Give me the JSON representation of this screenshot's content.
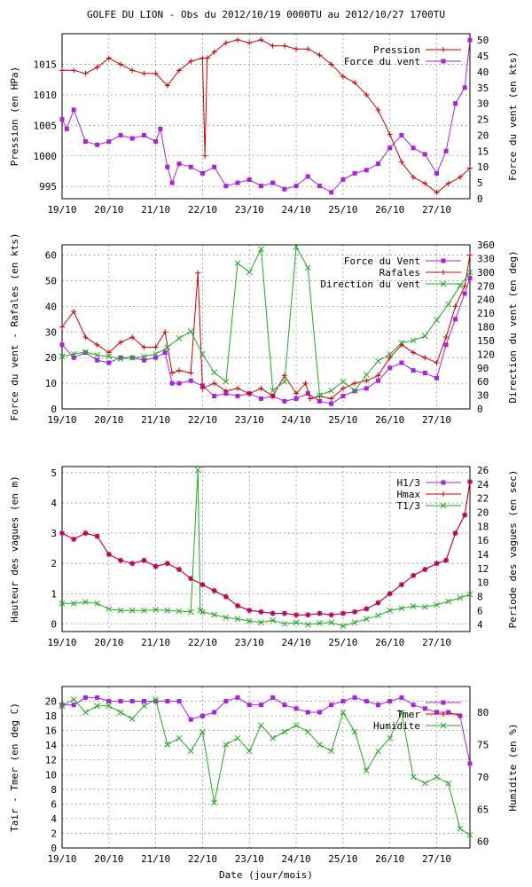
{
  "title": "GOLFE DU LION - Obs du 2012/10/19 0000TU au 2012/10/27 1700TU",
  "xlabel": "Date (jour/mois)",
  "colors": {
    "red": "#cc0000",
    "purple": "#aa22dd",
    "green": "#22aa22",
    "grid": "#999999"
  },
  "chart_data": [
    {
      "type": "line",
      "ylabel_left": "Pression (en HPa)",
      "ylabel_right": "Force du vent (en kts)",
      "x_ticks": [
        "19/10",
        "20/10",
        "21/10",
        "22/10",
        "23/10",
        "24/10",
        "25/10",
        "26/10",
        "27/10"
      ],
      "y_left_ticks": [
        995,
        1000,
        1005,
        1010,
        1015
      ],
      "y_left_range": [
        993,
        1020
      ],
      "y_right_ticks": [
        0,
        5,
        10,
        15,
        20,
        25,
        30,
        35,
        40,
        45,
        50
      ],
      "y_right_range": [
        0,
        52
      ],
      "series": [
        {
          "name": "Pression",
          "axis": "left",
          "color": "red",
          "marker": "plus",
          "x": [
            0,
            0.25,
            0.5,
            0.75,
            1,
            1.25,
            1.5,
            1.75,
            2,
            2.25,
            2.5,
            2.75,
            3,
            3.05,
            3.1,
            3.25,
            3.5,
            3.75,
            4,
            4.25,
            4.5,
            4.75,
            5,
            5.25,
            5.5,
            5.75,
            6,
            6.25,
            6.5,
            6.75,
            7,
            7.25,
            7.5,
            7.75,
            8,
            8.25,
            8.5,
            8.71
          ],
          "y": [
            1014,
            1014,
            1013.5,
            1014.5,
            1016,
            1015,
            1014,
            1013.5,
            1013.5,
            1011.5,
            1014,
            1015.5,
            1016,
            1000,
            1016,
            1017,
            1018.5,
            1019,
            1018.5,
            1019,
            1018,
            1018,
            1017.5,
            1017.5,
            1016.5,
            1015,
            1013,
            1012,
            1010,
            1007.5,
            1003.5,
            999,
            996.5,
            995.5,
            994,
            995.5,
            996.5,
            998
          ]
        },
        {
          "name": "Force du vent",
          "axis": "right",
          "color": "purple",
          "marker": "square",
          "x": [
            0,
            0.1,
            0.25,
            0.5,
            0.75,
            1,
            1.25,
            1.5,
            1.75,
            2,
            2.1,
            2.25,
            2.35,
            2.5,
            2.75,
            3,
            3.25,
            3.5,
            3.75,
            4,
            4.25,
            4.5,
            4.75,
            5,
            5.25,
            5.5,
            5.75,
            6,
            6.25,
            6.5,
            6.75,
            7,
            7.25,
            7.5,
            7.75,
            8,
            8.2,
            8.4,
            8.6,
            8.71
          ],
          "y": [
            25,
            22,
            28,
            18,
            17,
            18,
            20,
            19,
            20,
            18,
            22,
            10,
            5,
            11,
            10,
            8,
            10,
            4,
            5,
            6,
            4,
            5,
            3,
            4,
            7,
            4,
            2,
            6,
            8,
            9,
            11,
            16,
            20,
            16,
            14,
            8,
            15,
            30,
            35,
            50
          ]
        }
      ]
    },
    {
      "type": "line",
      "ylabel_left": "Force du vent - Rafales (en kts)",
      "ylabel_right": "Direction du vent (en deg)",
      "x_ticks": [
        "19/10",
        "20/10",
        "21/10",
        "22/10",
        "23/10",
        "24/10",
        "25/10",
        "26/10",
        "27/10"
      ],
      "y_left_ticks": [
        0,
        10,
        20,
        30,
        40,
        50,
        60
      ],
      "y_left_range": [
        0,
        64
      ],
      "y_right_ticks": [
        0,
        30,
        60,
        90,
        120,
        150,
        180,
        210,
        240,
        270,
        300,
        330,
        360
      ],
      "y_right_range": [
        0,
        360
      ],
      "series": [
        {
          "name": "Force du Vent",
          "axis": "left",
          "color": "purple",
          "marker": "square",
          "x": [
            0,
            0.25,
            0.5,
            0.75,
            1,
            1.25,
            1.5,
            1.75,
            2,
            2.2,
            2.35,
            2.5,
            2.75,
            3,
            3.25,
            3.5,
            3.75,
            4,
            4.25,
            4.5,
            4.75,
            5,
            5.25,
            5.5,
            5.75,
            6,
            6.25,
            6.5,
            6.75,
            7,
            7.25,
            7.5,
            7.75,
            8,
            8.2,
            8.4,
            8.6,
            8.71
          ],
          "y": [
            25,
            20,
            22,
            19,
            18,
            20,
            20,
            19,
            20,
            22,
            10,
            10,
            11,
            9,
            5,
            6,
            5,
            6,
            4,
            5,
            3,
            4,
            6,
            3,
            2,
            5,
            7,
            8,
            11,
            16,
            18,
            15,
            14,
            12,
            25,
            35,
            45,
            51
          ]
        },
        {
          "name": "Rafales",
          "axis": "left",
          "color": "red",
          "marker": "plus",
          "x": [
            0,
            0.25,
            0.5,
            0.75,
            1,
            1.25,
            1.5,
            1.75,
            2,
            2.2,
            2.35,
            2.5,
            2.75,
            2.9,
            3,
            3.25,
            3.5,
            3.75,
            4,
            4.25,
            4.5,
            4.75,
            5,
            5.2,
            5.3,
            5.5,
            5.75,
            6,
            6.25,
            6.5,
            6.75,
            7,
            7.25,
            7.5,
            7.75,
            8,
            8.2,
            8.4,
            8.6,
            8.71
          ],
          "y": [
            32,
            38,
            28,
            25,
            22,
            26,
            28,
            24,
            24,
            30,
            14,
            15,
            14,
            53,
            8,
            10,
            7,
            8,
            6,
            8,
            5,
            13,
            6,
            10,
            4,
            5,
            4,
            8,
            10,
            11,
            13,
            20,
            25,
            22,
            20,
            18,
            28,
            40,
            48,
            60
          ]
        },
        {
          "name": "Direction du vent",
          "axis": "right",
          "color": "green",
          "marker": "cross",
          "x": [
            0,
            0.25,
            0.5,
            0.75,
            1,
            1.25,
            1.5,
            1.75,
            2,
            2.25,
            2.5,
            2.75,
            3,
            3.25,
            3.5,
            3.75,
            4,
            4.25,
            4.5,
            4.75,
            5,
            5.25,
            5.5,
            5.75,
            6,
            6.25,
            6.5,
            6.75,
            7,
            7.25,
            7.5,
            7.75,
            8,
            8.25,
            8.5,
            8.71
          ],
          "y": [
            115,
            120,
            125,
            118,
            115,
            110,
            112,
            115,
            120,
            135,
            155,
            170,
            120,
            80,
            60,
            320,
            300,
            350,
            40,
            60,
            355,
            310,
            30,
            40,
            60,
            40,
            75,
            105,
            120,
            145,
            150,
            160,
            195,
            230,
            270,
            300
          ]
        }
      ]
    },
    {
      "type": "line",
      "ylabel_left": "Hauteur des vagues (en m)",
      "ylabel_right": "Periode des vagues (en sec)",
      "x_ticks": [
        "19/10",
        "20/10",
        "21/10",
        "22/10",
        "23/10",
        "24/10",
        "25/10",
        "26/10",
        "27/10"
      ],
      "y_left_ticks": [
        0,
        1,
        2,
        3,
        4,
        5
      ],
      "y_left_range": [
        -0.25,
        5.2
      ],
      "y_right_ticks": [
        4,
        6,
        8,
        10,
        12,
        14,
        16,
        18,
        20,
        22,
        24,
        26
      ],
      "y_right_range": [
        3,
        26.5
      ],
      "series": [
        {
          "name": "H1/3",
          "axis": "left",
          "color": "purple",
          "marker": "square",
          "x": [
            0,
            0.25,
            0.5,
            0.75,
            1,
            1.25,
            1.5,
            1.75,
            2,
            2.25,
            2.5,
            2.75,
            3,
            3.25,
            3.5,
            3.75,
            4,
            4.25,
            4.5,
            4.75,
            5,
            5.25,
            5.5,
            5.75,
            6,
            6.25,
            6.5,
            6.75,
            7,
            7.25,
            7.5,
            7.75,
            8,
            8.2,
            8.4,
            8.6,
            8.71
          ],
          "y": [
            3,
            2.8,
            3,
            2.9,
            2.3,
            2.1,
            2.0,
            2.1,
            1.9,
            2.0,
            1.8,
            1.5,
            1.3,
            1.1,
            0.9,
            0.6,
            0.45,
            0.4,
            0.35,
            0.35,
            0.3,
            0.3,
            0.35,
            0.3,
            0.35,
            0.4,
            0.5,
            0.7,
            1.0,
            1.3,
            1.6,
            1.8,
            2.0,
            2.1,
            3.0,
            3.6,
            4.7
          ]
        },
        {
          "name": "Hmax",
          "axis": "left",
          "color": "red",
          "marker": "plus",
          "x": [
            0,
            0.25,
            0.5,
            0.75,
            1,
            1.25,
            1.5,
            1.75,
            2,
            2.25,
            2.5,
            2.75,
            3,
            3.25,
            3.5,
            3.75,
            4,
            4.25,
            4.5,
            4.75,
            5,
            5.25,
            5.5,
            5.75,
            6,
            6.25,
            6.5,
            6.75,
            7,
            7.25,
            7.5,
            7.75,
            8,
            8.2,
            8.4,
            8.6,
            8.71
          ],
          "y": [
            3,
            2.8,
            3,
            2.9,
            2.3,
            2.1,
            2.0,
            2.1,
            1.9,
            2.0,
            1.8,
            1.5,
            1.3,
            1.1,
            0.9,
            0.6,
            0.45,
            0.4,
            0.35,
            0.35,
            0.3,
            0.3,
            0.35,
            0.3,
            0.35,
            0.4,
            0.5,
            0.7,
            1.0,
            1.3,
            1.6,
            1.8,
            2.0,
            2.1,
            3.0,
            3.6,
            4.7
          ]
        },
        {
          "name": "T1/3",
          "axis": "right",
          "color": "green",
          "marker": "cross",
          "x": [
            0,
            0.25,
            0.5,
            0.75,
            1,
            1.25,
            1.5,
            1.75,
            2,
            2.25,
            2.5,
            2.75,
            2.9,
            2.95,
            3,
            3.25,
            3.5,
            3.75,
            4,
            4.25,
            4.5,
            4.75,
            5,
            5.25,
            5.5,
            5.75,
            6,
            6.25,
            6.5,
            6.75,
            7,
            7.25,
            7.5,
            7.75,
            8,
            8.25,
            8.5,
            8.71
          ],
          "y": [
            7,
            7,
            7.2,
            7,
            6.2,
            6,
            6,
            6,
            6.1,
            6,
            5.9,
            5.8,
            26,
            6,
            5.8,
            5.4,
            5.0,
            4.8,
            4.5,
            4.3,
            4.6,
            4.1,
            4.3,
            4.0,
            4.2,
            4.3,
            3.8,
            4.3,
            4.8,
            5.3,
            6.0,
            6.3,
            6.6,
            6.5,
            6.8,
            7.3,
            7.8,
            8.3
          ]
        }
      ]
    },
    {
      "type": "line",
      "ylabel_left": "Tair - Tmer (en deg C)",
      "ylabel_right": "Humidite (en %)",
      "x_ticks": [
        "19/10",
        "20/10",
        "21/10",
        "22/10",
        "23/10",
        "24/10",
        "25/10",
        "26/10",
        "27/10"
      ],
      "y_left_ticks": [
        0,
        2,
        4,
        6,
        8,
        10,
        12,
        14,
        16,
        18,
        20
      ],
      "y_left_range": [
        0,
        22
      ],
      "y_right_ticks": [
        60,
        65,
        70,
        75,
        80
      ],
      "y_right_range": [
        59,
        84
      ],
      "series": [
        {
          "name": "",
          "axis": "left",
          "color": "purple",
          "marker": "square",
          "x": [
            0,
            0.25,
            0.5,
            0.75,
            1,
            1.25,
            1.5,
            1.75,
            2,
            2.25,
            2.5,
            2.75,
            3,
            3.25,
            3.5,
            3.75,
            4,
            4.25,
            4.5,
            4.75,
            5,
            5.25,
            5.5,
            5.75,
            6,
            6.25,
            6.5,
            6.75,
            7,
            7.25,
            7.5,
            7.75,
            8,
            8.25,
            8.5,
            8.71
          ],
          "y": [
            19.5,
            19.5,
            20.5,
            20.5,
            20,
            20,
            20,
            20,
            20,
            20,
            20,
            17.5,
            18,
            18.5,
            20,
            20.5,
            19.5,
            19.5,
            20.5,
            19.5,
            19,
            18.5,
            18.5,
            19.5,
            20,
            20.5,
            20,
            19.5,
            20,
            20.5,
            19.5,
            19,
            18.5,
            18.5,
            18,
            11.5
          ]
        },
        {
          "name": "Tmer",
          "axis": "left",
          "color": "red",
          "marker": "plus",
          "x": [],
          "y": []
        },
        {
          "name": "Humidite",
          "axis": "right",
          "color": "green",
          "marker": "cross",
          "x": [
            0,
            0.25,
            0.5,
            0.75,
            1,
            1.25,
            1.5,
            1.75,
            2,
            2.25,
            2.5,
            2.75,
            3,
            3.25,
            3.5,
            3.75,
            4,
            4.25,
            4.5,
            4.75,
            5,
            5.25,
            5.5,
            5.75,
            6,
            6.25,
            6.5,
            6.75,
            7,
            7.25,
            7.5,
            7.75,
            8,
            8.25,
            8.5,
            8.71
          ],
          "y": [
            81,
            82,
            80,
            81,
            81,
            80,
            79,
            81,
            82,
            75,
            76,
            74,
            77,
            66,
            75,
            76,
            74,
            78,
            76,
            77,
            78,
            77,
            75,
            74,
            80,
            77,
            71,
            74,
            76,
            80,
            70,
            69,
            70,
            69,
            62,
            61
          ]
        }
      ]
    }
  ]
}
